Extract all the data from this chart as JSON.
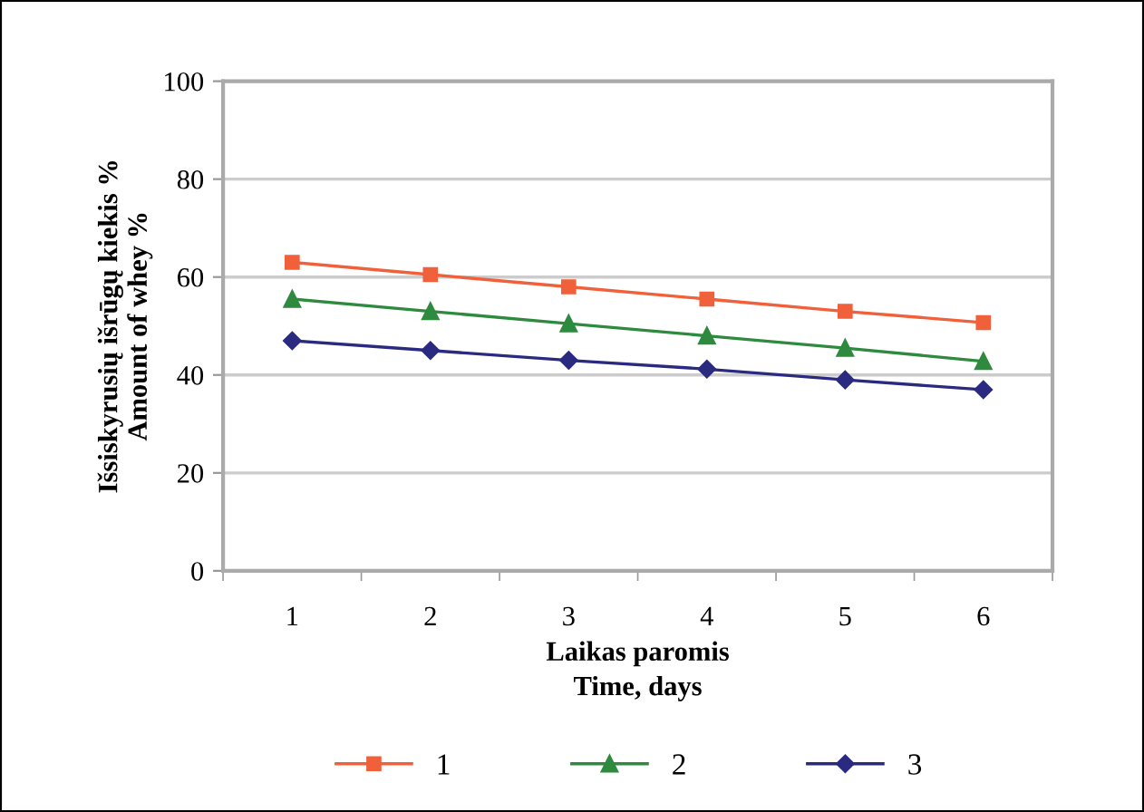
{
  "chart_data": {
    "type": "line",
    "categories": [
      "1",
      "2",
      "3",
      "4",
      "5",
      "6"
    ],
    "xlabel": "Laikas paromis\nTime, days",
    "ylabel": "Išsiskyrusių išrūgų kiekis %\nAmount of whey %",
    "ylim": [
      0,
      100
    ],
    "yticks": [
      0,
      20,
      40,
      60,
      80,
      100
    ],
    "grid": "y",
    "legend": "bottom",
    "line_style": "solid",
    "series": [
      {
        "name": "1",
        "color": "#f0603a",
        "marker": "square",
        "values": [
          63,
          60.5,
          58,
          55.5,
          53,
          50.7
        ]
      },
      {
        "name": "2",
        "color": "#2e8a3e",
        "marker": "triangle",
        "values": [
          55.5,
          53,
          50.5,
          48,
          45.5,
          42.8
        ]
      },
      {
        "name": "3",
        "color": "#2a2a80",
        "marker": "diamond",
        "values": [
          47,
          45,
          43,
          41.2,
          39,
          37
        ]
      }
    ]
  }
}
